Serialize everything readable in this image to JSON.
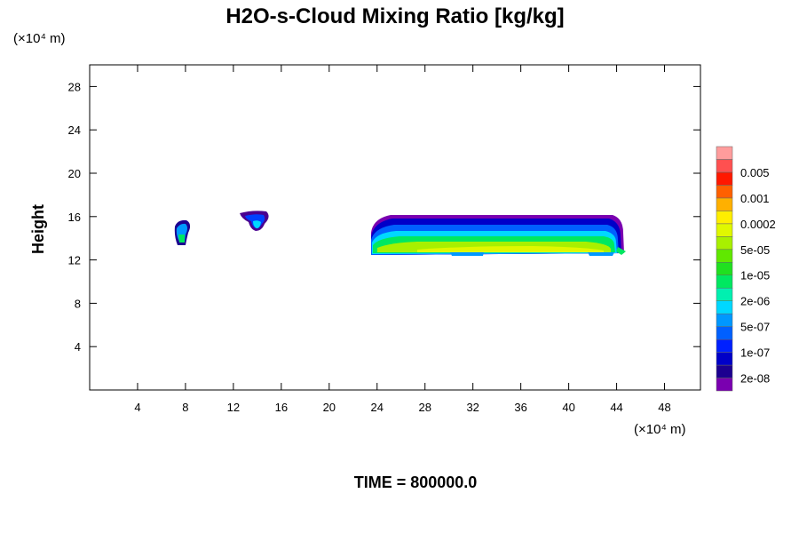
{
  "chart_data": {
    "type": "contour",
    "title": "H2O-s-Cloud Mixing Ratio [kg/kg]",
    "y_label": "Height",
    "x_unit": "(×10⁴ m)",
    "y_unit": "(×10⁴ m)",
    "footer": "TIME = 800000.0",
    "xlim": [
      0,
      51
    ],
    "ylim": [
      0,
      30
    ],
    "xticks": [
      4,
      8,
      12,
      16,
      20,
      24,
      28,
      32,
      36,
      40,
      44,
      48
    ],
    "yticks": [
      4,
      8,
      12,
      16,
      20,
      24,
      28
    ],
    "colors": [
      "#7a00b0",
      "#1c0090",
      "#0000c8",
      "#0020ff",
      "#0060ff",
      "#0098ff",
      "#00d8ff",
      "#00f0b0",
      "#00e860",
      "#20e020",
      "#60e800",
      "#a8f000",
      "#e0f800",
      "#ffee00",
      "#ffb000",
      "#ff6000",
      "#ff1800",
      "#ff5050",
      "#ff9c9c"
    ],
    "levels": [
      {
        "value": 2e-08,
        "label": "2e-08"
      },
      {
        "value": 1e-07,
        "label": "1e-07"
      },
      {
        "value": 5e-07,
        "label": "5e-07"
      },
      {
        "value": 2e-06,
        "label": "2e-06"
      },
      {
        "value": 1e-05,
        "label": "1e-05"
      },
      {
        "value": 5e-05,
        "label": "5e-05"
      },
      {
        "value": 0.0002,
        "label": "0.0002"
      },
      {
        "value": 0.001,
        "label": "0.001"
      },
      {
        "value": 0.005,
        "label": "0.005"
      }
    ]
  }
}
